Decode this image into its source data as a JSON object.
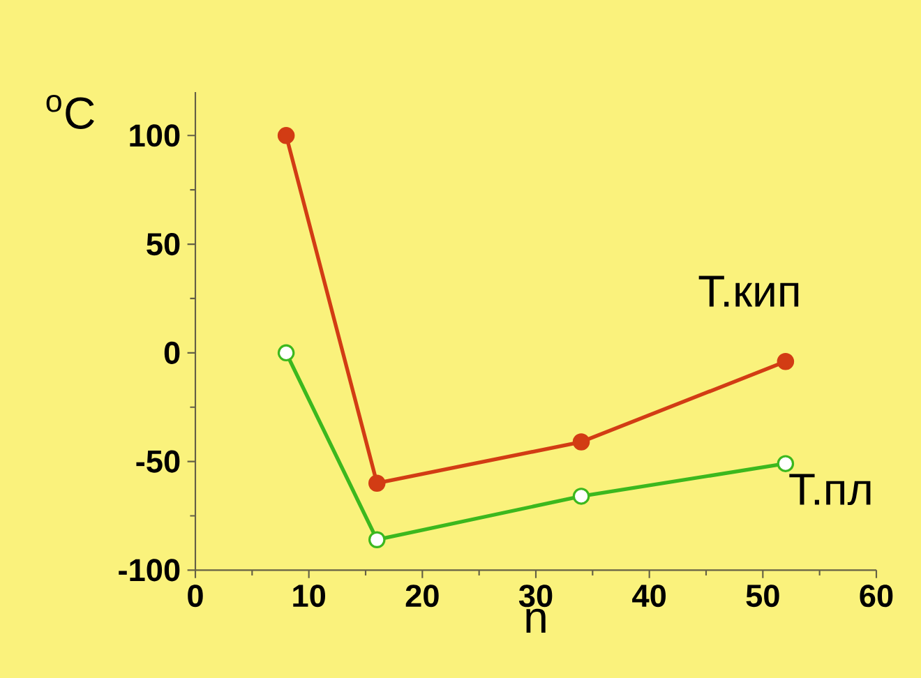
{
  "chart_data": {
    "type": "line",
    "xlabel": "n",
    "ylabel": "$^{o}$C",
    "x": [
      8,
      16,
      34,
      52
    ],
    "series": [
      {
        "name": "Т.кип",
        "color": "#d23c14",
        "values": [
          100,
          -60,
          -41,
          -4
        ]
      },
      {
        "name": "Т.пл",
        "color": "#3cb81e",
        "values": [
          0,
          -86,
          -66,
          -51
        ]
      }
    ],
    "xlim": [
      0,
      60
    ],
    "xticks": [
      0,
      10,
      20,
      30,
      40,
      50,
      60
    ],
    "ylim": [
      -100,
      120
    ],
    "yticks": [
      -100,
      -50,
      0,
      50,
      100
    ],
    "marker": "circle",
    "line_style": "solid",
    "grid": false,
    "legend": false
  }
}
